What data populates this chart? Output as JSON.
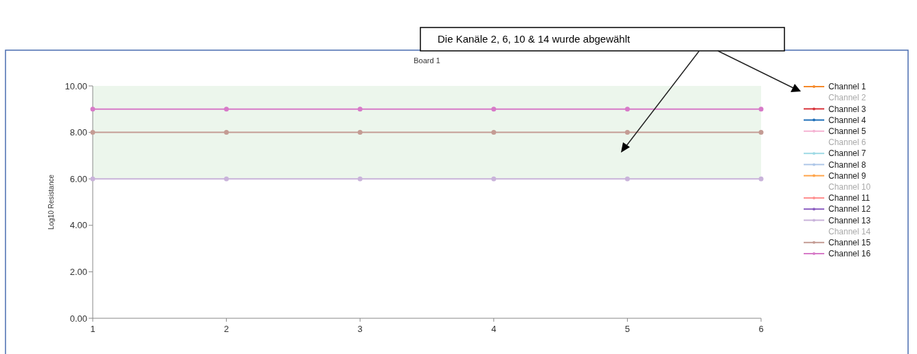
{
  "chart_data": {
    "type": "line",
    "title": "Board 1",
    "ylabel": "Log10 Resistance",
    "x": [
      1,
      2,
      3,
      4,
      5,
      6
    ],
    "xlim": [
      1,
      6
    ],
    "xticks": [
      1,
      2,
      3,
      4,
      5,
      6
    ],
    "ylim": [
      0,
      10
    ],
    "yticks": [
      {
        "value": 0,
        "label": "0.00"
      },
      {
        "value": 2,
        "label": "2.00"
      },
      {
        "value": 4,
        "label": "4.00"
      },
      {
        "value": 6,
        "label": "6.00"
      },
      {
        "value": 8,
        "label": "8.00"
      },
      {
        "value": 10,
        "label": "10.00"
      }
    ],
    "bands": [
      {
        "axis": "y",
        "from": 6,
        "to": 10,
        "color": "#ecf6ec"
      }
    ],
    "annotations": [
      "Die Kanäle 2, 6, 10 & 14 wurde abgewählt"
    ],
    "marker": "circle",
    "legend": "right",
    "grid": false,
    "series": [
      {
        "name": "Channel 1",
        "color": "#f5892a",
        "values": [
          null,
          null,
          null,
          null,
          null,
          null
        ]
      },
      {
        "name": "Channel 2",
        "color": null,
        "values": [
          null,
          null,
          null,
          null,
          null,
          null
        ]
      },
      {
        "name": "Channel 3",
        "color": "#d8323a",
        "values": [
          null,
          null,
          null,
          null,
          null,
          null
        ]
      },
      {
        "name": "Channel 4",
        "color": "#1f6fb8",
        "values": [
          null,
          null,
          null,
          null,
          null,
          null
        ]
      },
      {
        "name": "Channel 5",
        "color": "#f5b3d3",
        "values": [
          null,
          null,
          null,
          null,
          null,
          null
        ]
      },
      {
        "name": "Channel 6",
        "color": null,
        "values": [
          null,
          null,
          null,
          null,
          null,
          null
        ]
      },
      {
        "name": "Channel 7",
        "color": "#9edae5",
        "values": [
          null,
          null,
          null,
          null,
          null,
          null
        ]
      },
      {
        "name": "Channel 8",
        "color": "#aec7e8",
        "values": [
          null,
          null,
          null,
          null,
          null,
          null
        ]
      },
      {
        "name": "Channel 9",
        "color": "#ffa44a",
        "values": [
          null,
          null,
          null,
          null,
          null,
          null
        ]
      },
      {
        "name": "Channel 10",
        "color": null,
        "values": [
          null,
          null,
          null,
          null,
          null,
          null
        ]
      },
      {
        "name": "Channel 11",
        "color": "#ff8f8f",
        "values": [
          null,
          null,
          null,
          null,
          null,
          null
        ]
      },
      {
        "name": "Channel 12",
        "color": "#8a5cc0",
        "values": [
          null,
          null,
          null,
          null,
          null,
          null
        ]
      },
      {
        "name": "Channel 13",
        "color": "#c9b3da",
        "values": [
          6,
          6,
          6,
          6,
          6,
          6
        ]
      },
      {
        "name": "Channel 14",
        "color": null,
        "values": [
          null,
          null,
          null,
          null,
          null,
          null
        ]
      },
      {
        "name": "Channel 15",
        "color": "#c49c94",
        "values": [
          8,
          8,
          8,
          8,
          8,
          8
        ]
      },
      {
        "name": "Channel 16",
        "color": "#d77ac8",
        "values": [
          9,
          9,
          9,
          9,
          9,
          9
        ]
      }
    ]
  }
}
